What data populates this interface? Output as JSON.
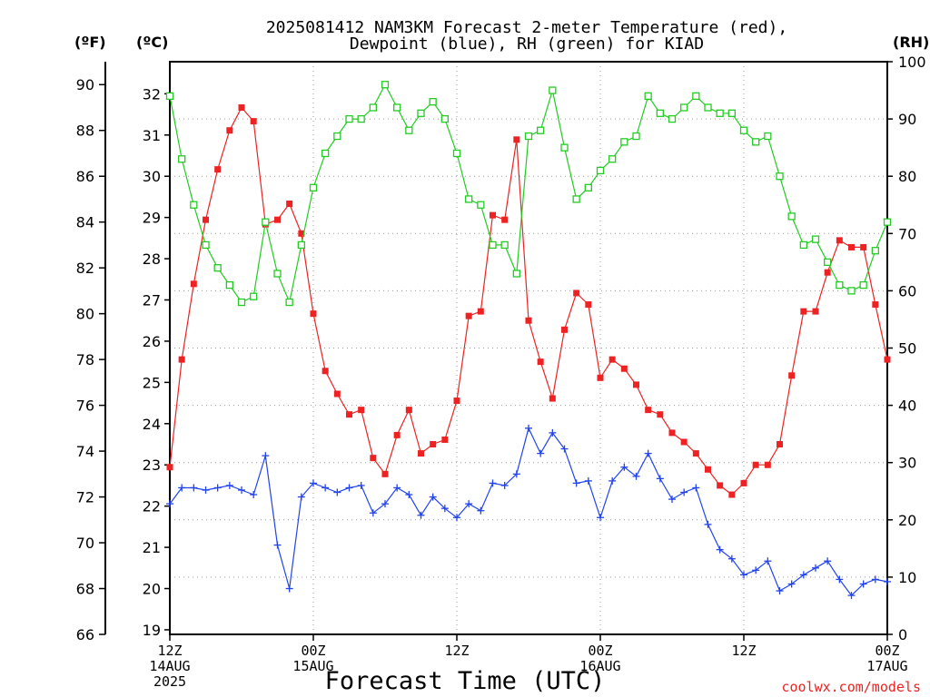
{
  "chart_data": {
    "type": "line",
    "title_line1": "2025081412 NAM3KM Forecast 2-meter Temperature (red),",
    "title_line2": "Dewpoint (blue), RH (green) for KIAD",
    "xlabel": "Forecast Time (UTC)",
    "unit_f": "(ºF)",
    "unit_c": "(ºC)",
    "unit_rh": "(RH)",
    "watermark": "coolwx.com/models",
    "x_range_hours": [
      0,
      60
    ],
    "x_ticks": [
      {
        "hour": 0,
        "lines": [
          "12Z",
          "14AUG",
          "2025"
        ]
      },
      {
        "hour": 12,
        "lines": [
          "00Z",
          "15AUG"
        ]
      },
      {
        "hour": 24,
        "lines": [
          "12Z"
        ]
      },
      {
        "hour": 36,
        "lines": [
          "00Z",
          "16AUG"
        ]
      },
      {
        "hour": 48,
        "lines": [
          "12Z"
        ]
      },
      {
        "hour": 60,
        "lines": [
          "00Z",
          "17AUG"
        ]
      }
    ],
    "f_axis": {
      "range": [
        66,
        91
      ],
      "ticks": [
        66,
        68,
        70,
        72,
        74,
        76,
        78,
        80,
        82,
        84,
        86,
        88,
        90
      ]
    },
    "c_axis": {
      "ticks": [
        19,
        20,
        21,
        22,
        23,
        24,
        25,
        26,
        27,
        28,
        29,
        30,
        31,
        32
      ]
    },
    "rh_axis": {
      "range": [
        0,
        100
      ],
      "ticks": [
        0,
        10,
        20,
        30,
        40,
        50,
        60,
        70,
        80,
        90,
        100
      ]
    },
    "hours": [
      0,
      1,
      2,
      3,
      4,
      5,
      6,
      7,
      8,
      9,
      10,
      11,
      12,
      13,
      14,
      15,
      16,
      17,
      18,
      19,
      20,
      21,
      22,
      23,
      24,
      25,
      26,
      27,
      28,
      29,
      30,
      31,
      32,
      33,
      34,
      35,
      36,
      37,
      38,
      39,
      40,
      41,
      42,
      43,
      44,
      45,
      46,
      47,
      48,
      49,
      50,
      51,
      52,
      53,
      54,
      55,
      56,
      57,
      58,
      59,
      60
    ],
    "series": [
      {
        "name": "Temperature",
        "unit": "F",
        "color": "#ee2222",
        "marker": "square-filled",
        "values": [
          73.3,
          78.0,
          81.3,
          84.1,
          86.3,
          88.0,
          89.0,
          88.4,
          83.9,
          84.1,
          84.8,
          83.5,
          80.0,
          77.5,
          76.5,
          75.6,
          75.8,
          73.7,
          73.0,
          74.7,
          75.8,
          73.9,
          74.3,
          74.5,
          76.2,
          79.9,
          80.1,
          84.3,
          84.1,
          87.6,
          79.7,
          77.9,
          76.3,
          79.3,
          80.9,
          80.4,
          77.2,
          78.0,
          77.6,
          76.9,
          75.8,
          75.6,
          74.8,
          74.4,
          73.9,
          73.2,
          72.5,
          72.1,
          72.6,
          73.4,
          73.4,
          74.3,
          77.3,
          80.1,
          80.1,
          81.8,
          83.2,
          82.9,
          82.9,
          80.4,
          78.0
        ]
      },
      {
        "name": "Dewpoint",
        "unit": "F",
        "color": "#2244ee",
        "marker": "plus",
        "values": [
          71.7,
          72.4,
          72.4,
          72.3,
          72.4,
          72.5,
          72.3,
          72.1,
          73.8,
          69.9,
          68.0,
          72.0,
          72.6,
          72.4,
          72.2,
          72.4,
          72.5,
          71.3,
          71.7,
          72.4,
          72.1,
          71.2,
          72.0,
          71.5,
          71.1,
          71.7,
          71.4,
          72.6,
          72.5,
          73.0,
          75.0,
          73.9,
          74.8,
          74.1,
          72.6,
          72.7,
          71.1,
          72.7,
          73.3,
          72.9,
          73.9,
          72.8,
          71.9,
          72.2,
          72.4,
          70.8,
          69.7,
          69.3,
          68.6,
          68.8,
          69.2,
          67.9,
          68.2,
          68.6,
          68.9,
          69.2,
          68.4,
          67.7,
          68.2,
          68.4,
          68.3
        ]
      },
      {
        "name": "RH",
        "unit": "%",
        "color": "#22cc22",
        "marker": "square-open",
        "values": [
          94,
          83,
          75,
          68,
          64,
          61,
          58,
          59,
          72,
          63,
          58,
          68,
          78,
          84,
          87,
          90,
          90,
          92,
          96,
          92,
          88,
          91,
          93,
          90,
          84,
          76,
          75,
          68,
          68,
          63,
          87,
          88,
          95,
          85,
          76,
          78,
          81,
          83,
          86,
          87,
          94,
          91,
          90,
          92,
          94,
          92,
          91,
          91,
          88,
          86,
          87,
          80,
          73,
          68,
          69,
          65,
          61,
          60,
          61,
          67,
          72
        ]
      }
    ]
  }
}
